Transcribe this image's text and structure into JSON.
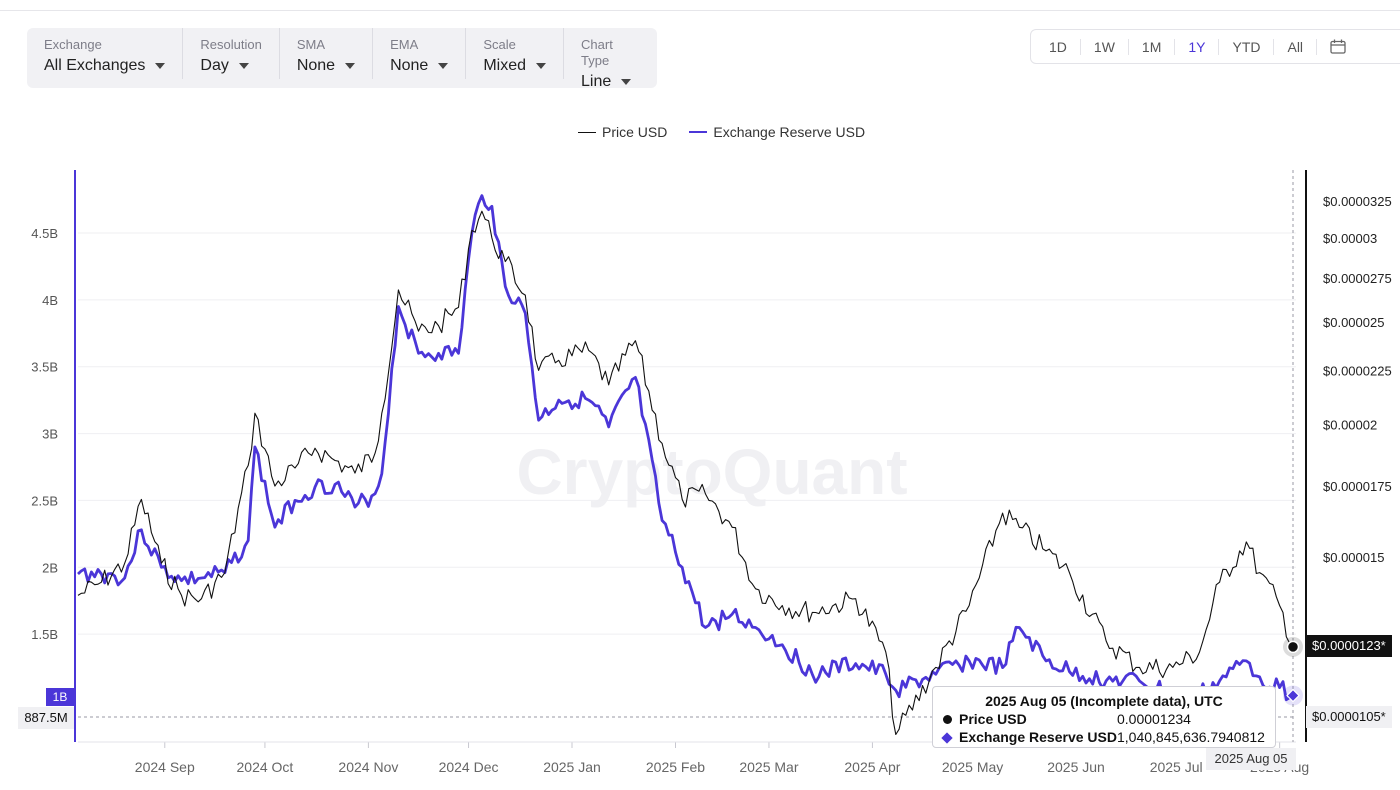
{
  "controls": [
    {
      "label": "Exchange",
      "value": "All Exchanges"
    },
    {
      "label": "Resolution",
      "value": "Day"
    },
    {
      "label": "SMA",
      "value": "None"
    },
    {
      "label": "EMA",
      "value": "None"
    },
    {
      "label": "Scale",
      "value": "Mixed"
    },
    {
      "label": "Chart Type",
      "value": "Line"
    }
  ],
  "ranges": [
    "1D",
    "1W",
    "1M",
    "1Y",
    "YTD",
    "All"
  ],
  "active_range": "1Y",
  "watermark": "CryptoQuant",
  "tooltip": {
    "title": "2025 Aug 05 (Incomplete data), UTC",
    "rows": [
      {
        "name": "Price USD",
        "value": "0.00001234"
      },
      {
        "name": "Exchange Reserve USD",
        "value": "1,040,845,636.7940812"
      }
    ]
  },
  "crosshair": {
    "x_label": "2025 Aug 05",
    "price_label": "$0.0000123*",
    "min_price_label": "$0.0000105*",
    "left_label": "887.5M",
    "left_1b_label": "1B"
  },
  "colors": {
    "price": "#111111",
    "reserve": "#4b36d8",
    "active": "#4b36d8"
  },
  "chart_data": {
    "type": "line",
    "legend": [
      "Price USD",
      "Exchange Reserve USD"
    ],
    "legend_position": "top-center",
    "x_ticks": [
      "2024 Sep",
      "2024 Oct",
      "2024 Nov",
      "2024 Dec",
      "2025 Jan",
      "2025 Feb",
      "2025 Mar",
      "2025 Apr",
      "2025 May",
      "2025 Jun",
      "2025 Jul",
      "2025 Aug"
    ],
    "y_left_ticks": [
      "1.5B",
      "2B",
      "2.5B",
      "3B",
      "3.5B",
      "4B",
      "4.5B"
    ],
    "y_right_ticks": [
      "$0.000015",
      "$0.0000175",
      "$0.00002",
      "$0.0000225",
      "$0.000025",
      "$0.0000275",
      "$0.00003",
      "$0.0000325"
    ],
    "y_left_range": [
      887500000,
      4950000000
    ],
    "y_right_scale": "log",
    "grid": "horizontal",
    "series": [
      {
        "name": "Price USD",
        "axis": "right",
        "unit": "USD",
        "points": [
          [
            "2024-08-06",
            1.38e-05
          ],
          [
            "2024-08-13",
            1.42e-05
          ],
          [
            "2024-08-20",
            1.48e-05
          ],
          [
            "2024-08-25",
            1.7e-05
          ],
          [
            "2024-08-31",
            1.48e-05
          ],
          [
            "2024-09-06",
            1.38e-05
          ],
          [
            "2024-09-12",
            1.37e-05
          ],
          [
            "2024-09-19",
            1.45e-05
          ],
          [
            "2024-09-26",
            1.83e-05
          ],
          [
            "2024-09-28",
            2.05e-05
          ],
          [
            "2024-10-04",
            1.75e-05
          ],
          [
            "2024-10-10",
            1.82e-05
          ],
          [
            "2024-10-16",
            1.9e-05
          ],
          [
            "2024-10-22",
            1.85e-05
          ],
          [
            "2024-10-28",
            1.8e-05
          ],
          [
            "2024-11-03",
            1.88e-05
          ],
          [
            "2024-11-05",
            2.05e-05
          ],
          [
            "2024-11-10",
            2.68e-05
          ],
          [
            "2024-11-16",
            2.45e-05
          ],
          [
            "2024-11-22",
            2.48e-05
          ],
          [
            "2024-11-28",
            2.58e-05
          ],
          [
            "2024-12-02",
            3.05e-05
          ],
          [
            "2024-12-05",
            3.18e-05
          ],
          [
            "2024-12-08",
            3e-05
          ],
          [
            "2024-12-12",
            2.85e-05
          ],
          [
            "2024-12-18",
            2.65e-05
          ],
          [
            "2024-12-22",
            2.25e-05
          ],
          [
            "2024-12-28",
            2.3e-05
          ],
          [
            "2025-01-06",
            2.35e-05
          ],
          [
            "2025-01-12",
            2.18e-05
          ],
          [
            "2025-01-20",
            2.4e-05
          ],
          [
            "2025-01-28",
            1.92e-05
          ],
          [
            "2025-02-03",
            1.7e-05
          ],
          [
            "2025-02-10",
            1.72e-05
          ],
          [
            "2025-02-18",
            1.6e-05
          ],
          [
            "2025-02-25",
            1.4e-05
          ],
          [
            "2025-03-05",
            1.35e-05
          ],
          [
            "2025-03-14",
            1.33e-05
          ],
          [
            "2025-03-27",
            1.37e-05
          ],
          [
            "2025-04-05",
            1.22e-05
          ],
          [
            "2025-04-08",
            1.02e-05
          ],
          [
            "2025-04-20",
            1.18e-05
          ],
          [
            "2025-04-30",
            1.35e-05
          ],
          [
            "2025-05-10",
            1.65e-05
          ],
          [
            "2025-05-15",
            1.6e-05
          ],
          [
            "2025-05-23",
            1.52e-05
          ],
          [
            "2025-05-30",
            1.45e-05
          ],
          [
            "2025-06-10",
            1.25e-05
          ],
          [
            "2025-06-20",
            1.18e-05
          ],
          [
            "2025-06-30",
            1.18e-05
          ],
          [
            "2025-07-08",
            1.22e-05
          ],
          [
            "2025-07-14",
            1.42e-05
          ],
          [
            "2025-07-22",
            1.55e-05
          ],
          [
            "2025-07-26",
            1.45e-05
          ],
          [
            "2025-08-01",
            1.35e-05
          ],
          [
            "2025-08-05",
            1.234e-05
          ]
        ]
      },
      {
        "name": "Exchange Reserve USD",
        "axis": "left",
        "unit": "USD",
        "points": [
          [
            "2024-08-06",
            1950000000
          ],
          [
            "2024-08-13",
            1950000000
          ],
          [
            "2024-08-20",
            1920000000
          ],
          [
            "2024-08-25",
            2280000000
          ],
          [
            "2024-08-31",
            2000000000
          ],
          [
            "2024-09-06",
            1900000000
          ],
          [
            "2024-09-12",
            1920000000
          ],
          [
            "2024-09-19",
            1960000000
          ],
          [
            "2024-09-26",
            2200000000
          ],
          [
            "2024-09-28",
            2900000000
          ],
          [
            "2024-10-04",
            2300000000
          ],
          [
            "2024-10-10",
            2500000000
          ],
          [
            "2024-10-16",
            2600000000
          ],
          [
            "2024-10-22",
            2620000000
          ],
          [
            "2024-10-28",
            2450000000
          ],
          [
            "2024-11-03",
            2550000000
          ],
          [
            "2024-11-05",
            2700000000
          ],
          [
            "2024-11-10",
            3950000000
          ],
          [
            "2024-11-16",
            3600000000
          ],
          [
            "2024-11-22",
            3600000000
          ],
          [
            "2024-11-28",
            3600000000
          ],
          [
            "2024-12-02",
            4500000000
          ],
          [
            "2024-12-05",
            4780000000
          ],
          [
            "2024-12-08",
            4700000000
          ],
          [
            "2024-12-12",
            4100000000
          ],
          [
            "2024-12-18",
            3900000000
          ],
          [
            "2024-12-22",
            3100000000
          ],
          [
            "2024-12-28",
            3250000000
          ],
          [
            "2025-01-06",
            3250000000
          ],
          [
            "2025-01-12",
            3050000000
          ],
          [
            "2025-01-20",
            3420000000
          ],
          [
            "2025-01-28",
            2350000000
          ],
          [
            "2025-02-03",
            2000000000
          ],
          [
            "2025-02-10",
            1550000000
          ],
          [
            "2025-02-18",
            1650000000
          ],
          [
            "2025-02-25",
            1550000000
          ],
          [
            "2025-03-05",
            1420000000
          ],
          [
            "2025-03-14",
            1200000000
          ],
          [
            "2025-03-27",
            1280000000
          ],
          [
            "2025-04-05",
            1200000000
          ],
          [
            "2025-04-08",
            1080000000
          ],
          [
            "2025-04-20",
            1200000000
          ],
          [
            "2025-04-30",
            1300000000
          ],
          [
            "2025-05-10",
            1250000000
          ],
          [
            "2025-05-15",
            1550000000
          ],
          [
            "2025-05-23",
            1300000000
          ],
          [
            "2025-05-30",
            1220000000
          ],
          [
            "2025-06-10",
            1150000000
          ],
          [
            "2025-06-20",
            1150000000
          ],
          [
            "2025-06-30",
            1050000000
          ],
          [
            "2025-07-08",
            1050000000
          ],
          [
            "2025-07-14",
            1150000000
          ],
          [
            "2025-07-22",
            1300000000
          ],
          [
            "2025-07-26",
            1180000000
          ],
          [
            "2025-08-01",
            1100000000
          ],
          [
            "2025-08-05",
            1040845636.79
          ]
        ]
      }
    ]
  }
}
